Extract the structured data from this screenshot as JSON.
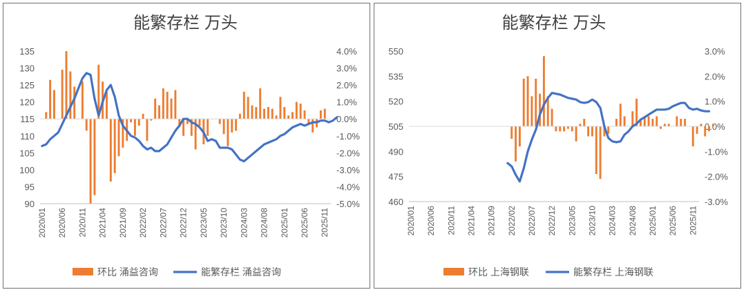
{
  "chart_data": [
    {
      "type": "bar+line",
      "title": "能繁存栏 万头",
      "x_tick_labels": [
        "2020/01",
        "2020/06",
        "2020/11",
        "2021/04",
        "2021/09",
        "2022/02",
        "2022/07",
        "2022/12",
        "2023/05",
        "2023/10",
        "2024/03",
        "2024/08",
        "2025/01",
        "2025/06",
        "2025/11"
      ],
      "left_axis": {
        "range": [
          90,
          135
        ],
        "ticks": [
          "90",
          "95",
          "100",
          "105",
          "110",
          "115",
          "120",
          "125",
          "130",
          "135"
        ]
      },
      "right_axis": {
        "range": [
          -5.0,
          4.0
        ],
        "ticks": [
          "-5.0%",
          "-4.0%",
          "-3.0%",
          "-2.0%",
          "-1.0%",
          "0.0%",
          "1.0%",
          "2.0%",
          "3.0%",
          "4.0%"
        ]
      },
      "legend": {
        "position": "bottom",
        "bar_label": "环比 涌益咨询",
        "line_label": "能繁存栏 涌益咨询"
      },
      "colors": {
        "bar": "#ED7D31",
        "line": "#4472C4"
      },
      "bar_series": {
        "name": "环比 涌益咨询",
        "axis": "right",
        "start": "2020/02",
        "values": [
          0.4,
          2.3,
          1.7,
          0.0,
          2.9,
          4.0,
          2.8,
          1.9,
          0.0,
          2.2,
          -0.7,
          -5.0,
          -4.5,
          3.2,
          2.2,
          1.6,
          -3.7,
          -3.2,
          -2.2,
          -1.7,
          -1.3,
          -0.2,
          -1.0,
          -0.4,
          0.3,
          -1.3,
          -0.1,
          1.2,
          0.8,
          1.8,
          1.6,
          1.2,
          1.7,
          -0.5,
          -1.0,
          -0.3,
          -1.0,
          -1.8,
          -0.4,
          -1.5,
          -1.0,
          0.0,
          0.0,
          -0.3,
          -0.9,
          -1.6,
          -0.8,
          -0.7,
          0.3,
          1.6,
          1.3,
          0.8,
          0.7,
          1.8,
          0.6,
          0.7,
          0.6,
          0.2,
          1.3,
          0.7,
          0.2,
          0.4,
          1.0,
          0.9,
          0.5,
          -0.3,
          -0.8,
          -0.5,
          0.5,
          0.6
        ]
      },
      "line_series": {
        "name": "能繁存栏 涌益咨询",
        "axis": "left",
        "start": "2020/01",
        "values": [
          107.0,
          107.5,
          109.0,
          110.0,
          111.0,
          113.5,
          116.0,
          118.5,
          121.0,
          124.0,
          127.0,
          128.5,
          128.0,
          121.0,
          116.0,
          120.0,
          123.5,
          125.0,
          121.5,
          116.0,
          113.0,
          111.5,
          110.0,
          109.5,
          108.5,
          107.0,
          106.0,
          106.5,
          105.5,
          105.5,
          106.5,
          107.5,
          109.5,
          111.5,
          113.0,
          115.0,
          115.0,
          114.0,
          113.5,
          112.5,
          111.0,
          108.5,
          109.0,
          108.5,
          106.5,
          106.5,
          106.5,
          106.0,
          104.5,
          103.0,
          102.5,
          103.5,
          104.5,
          105.5,
          106.5,
          107.5,
          108.0,
          108.5,
          109.0,
          110.0,
          110.5,
          111.5,
          112.5,
          113.0,
          113.5,
          113.0,
          113.5,
          114.0,
          114.0,
          114.5,
          114.5,
          114.0,
          114.5,
          115.5
        ]
      }
    },
    {
      "type": "bar+line",
      "title": "能繁存栏 万头",
      "x_tick_labels": [
        "2020/01",
        "2020/06",
        "2020/11",
        "2021/04",
        "2021/09",
        "2022/02",
        "2022/07",
        "2022/12",
        "2023/05",
        "2023/10",
        "2024/03",
        "2024/08",
        "2025/01",
        "2025/06",
        "2025/11"
      ],
      "left_axis": {
        "range": [
          460,
          550
        ],
        "ticks": [
          "460",
          "475",
          "490",
          "505",
          "520",
          "535",
          "550"
        ]
      },
      "right_axis": {
        "range": [
          -3.0,
          3.0
        ],
        "ticks": [
          "-3.0%",
          "-2.0%",
          "-1.0%",
          "0.0%",
          "1.0%",
          "2.0%",
          "3.0%"
        ]
      },
      "legend": {
        "position": "bottom",
        "bar_label": "环比 上海钢联",
        "line_label": "能繁存栏 上海钢联"
      },
      "colors": {
        "bar": "#ED7D31",
        "line": "#4472C4"
      },
      "bar_series": {
        "name": "环比 上海钢联",
        "axis": "right",
        "start": "2022/02",
        "values": [
          -0.5,
          -1.4,
          -0.8,
          1.9,
          2.0,
          1.2,
          1.9,
          1.3,
          2.8,
          1.2,
          0.7,
          -0.2,
          -0.2,
          -0.2,
          -0.1,
          -0.2,
          -0.6,
          0.1,
          0.3,
          -0.4,
          -0.4,
          -1.9,
          -2.1,
          -0.4,
          -0.3,
          0.0,
          0.3,
          0.9,
          0.4,
          0.0,
          0.6,
          1.1,
          0.3,
          0.4,
          0.4,
          0.3,
          0.4,
          -0.1,
          0.1,
          0.1,
          0.0,
          0.4,
          0.3,
          0.3,
          0.0,
          -0.8,
          -0.3,
          0.1,
          -0.4,
          -0.2,
          0.1
        ]
      },
      "line_series": {
        "name": "能繁存栏 上海钢联",
        "axis": "left",
        "start": "2022/01",
        "values": [
          483.0,
          481.0,
          476.0,
          472.0,
          480.0,
          490.0,
          497.0,
          503.0,
          512.0,
          518.0,
          522.0,
          525.0,
          524.5,
          524.0,
          523.0,
          522.0,
          521.5,
          521.0,
          519.5,
          519.0,
          519.5,
          521.0,
          519.5,
          516.0,
          505.0,
          498.0,
          496.0,
          495.5,
          496.0,
          500.0,
          502.0,
          505.0,
          506.5,
          509.0,
          510.5,
          512.0,
          513.5,
          515.0,
          515.0,
          515.0,
          515.5,
          517.0,
          518.0,
          519.0,
          519.0,
          516.0,
          515.0,
          515.5,
          514.5,
          514.0,
          514.0
        ]
      }
    }
  ]
}
